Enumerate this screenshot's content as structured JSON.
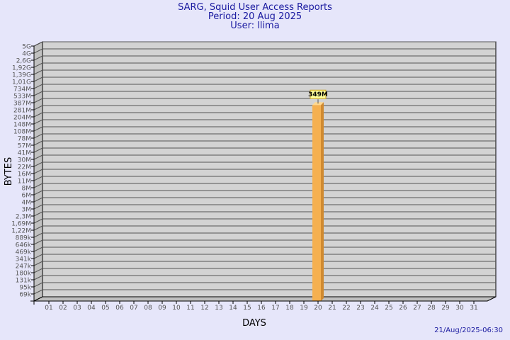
{
  "chart_data": {
    "type": "bar",
    "title": "SARG, Squid User Access Reports",
    "subtitle_period": "Period: 20 Aug 2025",
    "subtitle_user": "User: llima",
    "xlabel": "DAYS",
    "ylabel": "BYTES",
    "y_scale": "log",
    "grid": true,
    "categories": [
      "01",
      "02",
      "03",
      "04",
      "05",
      "06",
      "07",
      "08",
      "09",
      "10",
      "11",
      "12",
      "13",
      "14",
      "15",
      "16",
      "17",
      "18",
      "19",
      "20",
      "21",
      "22",
      "23",
      "24",
      "25",
      "26",
      "27",
      "28",
      "29",
      "30",
      "31"
    ],
    "series": [
      {
        "values_bytes": {
          "20": 349000000
        },
        "data_labels": {
          "20": "349M"
        }
      }
    ],
    "y_tick_labels": [
      "5G",
      "4G",
      "2,6G",
      "1,92G",
      "1,39G",
      "1,01G",
      "734M",
      "533M",
      "387M",
      "281M",
      "204M",
      "148M",
      "108M",
      "78M",
      "57M",
      "41M",
      "30M",
      "22M",
      "16M",
      "11M",
      "8M",
      "6M",
      "4M",
      "3M",
      "2,3M",
      "1,69M",
      "1,22M",
      "889k",
      "646k",
      "469k",
      "341k",
      "247k",
      "180k",
      "131k",
      "95k",
      "69k"
    ],
    "colors": {
      "bar": "#f5b050",
      "bar_side": "#d08a30",
      "bar_top": "#ffd890",
      "wall": "#d3d3d3",
      "side": "#c0c0c0",
      "background": "#e6e6fa",
      "title": "#1a1aa0"
    }
  },
  "footer": {
    "timestamp": "21/Aug/2025-06:30"
  }
}
